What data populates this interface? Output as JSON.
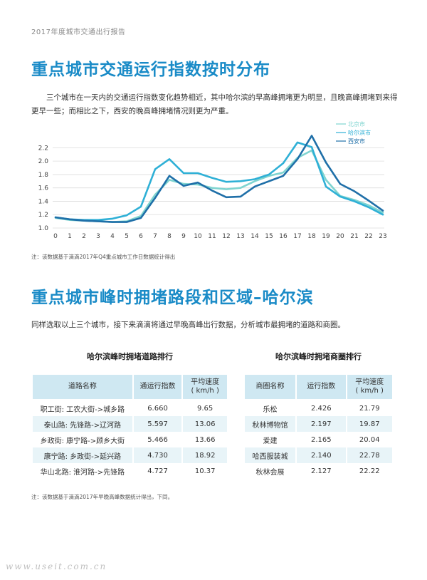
{
  "header": {
    "report_title": "2017年度城市交通出行报告"
  },
  "section1": {
    "title": "重点城市交通运行指数按时分布",
    "paragraph": "三个城市在一天内的交通运行指数变化趋势相近，其中哈尔滨的早高峰拥堵更为明显，且晚高峰拥堵到来得更早一些；而相比之下，西安的晚高峰拥堵情况则更为严重。",
    "note": "注：该数据基于滴滴2017年Q4重点城市工作日数据统计得出"
  },
  "chart_data": {
    "type": "line",
    "x": [
      0,
      1,
      2,
      3,
      4,
      5,
      6,
      7,
      8,
      9,
      10,
      11,
      12,
      13,
      14,
      15,
      16,
      17,
      18,
      19,
      20,
      21,
      22,
      23
    ],
    "ylim": [
      1.0,
      2.3
    ],
    "yticks": [
      "1.0",
      "1.2",
      "1.4",
      "1.6",
      "1.8",
      "2.0",
      "2.2"
    ],
    "xticks": [
      "0",
      "1",
      "2",
      "3",
      "4",
      "5",
      "6",
      "7",
      "8",
      "9",
      "10",
      "11",
      "12",
      "13",
      "14",
      "15",
      "16",
      "17",
      "18",
      "19",
      "20",
      "21",
      "22",
      "23"
    ],
    "legend_position": "top-right",
    "series": [
      {
        "name": "北京市",
        "color": "#7fd4d0",
        "values": [
          1.15,
          1.12,
          1.11,
          1.1,
          1.09,
          1.1,
          1.18,
          1.5,
          1.72,
          1.66,
          1.65,
          1.6,
          1.58,
          1.6,
          1.7,
          1.78,
          1.83,
          2.05,
          2.16,
          1.72,
          1.48,
          1.42,
          1.34,
          1.23
        ]
      },
      {
        "name": "哈尔滨市",
        "color": "#2fb0d6",
        "values": [
          1.16,
          1.13,
          1.12,
          1.12,
          1.14,
          1.19,
          1.32,
          1.88,
          2.03,
          1.82,
          1.82,
          1.75,
          1.69,
          1.7,
          1.73,
          1.8,
          1.97,
          2.28,
          2.21,
          1.62,
          1.47,
          1.4,
          1.31,
          1.2
        ]
      },
      {
        "name": "西安市",
        "color": "#1f6fa8",
        "values": [
          1.16,
          1.13,
          1.11,
          1.1,
          1.09,
          1.09,
          1.15,
          1.45,
          1.78,
          1.63,
          1.68,
          1.56,
          1.46,
          1.47,
          1.62,
          1.7,
          1.78,
          2.03,
          2.38,
          1.98,
          1.66,
          1.55,
          1.41,
          1.26
        ]
      }
    ]
  },
  "section2": {
    "title": "重点城市峰时拥堵路段和区域–哈尔滨",
    "paragraph": "同样选取以上三个城市，接下来滴滴将通过早晚高峰出行数据，分析城市最拥堵的道路和商圈。",
    "note": "注：该数据基于滴滴2017年早晚高峰数据统计得出，下同。"
  },
  "roads_table": {
    "title": "哈尔滨峰时拥堵道路排行",
    "headers": {
      "name": "道路名称",
      "index": "通运行指数",
      "speed_line1": "平均速度",
      "speed_line2": "( km/h )"
    },
    "rows": [
      {
        "name": "职工街: 工农大街->城乡路",
        "index": "6.660",
        "speed": "9.65"
      },
      {
        "name": "泰山路: 先锋路->辽河路",
        "index": "5.597",
        "speed": "13.06"
      },
      {
        "name": "乡政街: 康宁路->顾乡大街",
        "index": "5.466",
        "speed": "13.66"
      },
      {
        "name": "康宁路: 乡政街->延兴路",
        "index": "4.730",
        "speed": "18.92"
      },
      {
        "name": "华山北路: 淮河路->先锋路",
        "index": "4.727",
        "speed": "10.37"
      }
    ]
  },
  "districts_table": {
    "title": "哈尔滨峰时拥堵商圈排行",
    "headers": {
      "name": "商圈名称",
      "index": "运行指数",
      "speed_line1": "平均速度",
      "speed_line2": "( km/h )"
    },
    "rows": [
      {
        "name": "乐松",
        "index": "2.426",
        "speed": "21.79"
      },
      {
        "name": "秋林博物馆",
        "index": "2.197",
        "speed": "19.87"
      },
      {
        "name": "爱建",
        "index": "2.165",
        "speed": "20.04"
      },
      {
        "name": "哈西服装城",
        "index": "2.140",
        "speed": "22.78"
      },
      {
        "name": "秋林会展",
        "index": "2.127",
        "speed": "22.22"
      }
    ]
  },
  "watermark": "www.useit.com.cn"
}
